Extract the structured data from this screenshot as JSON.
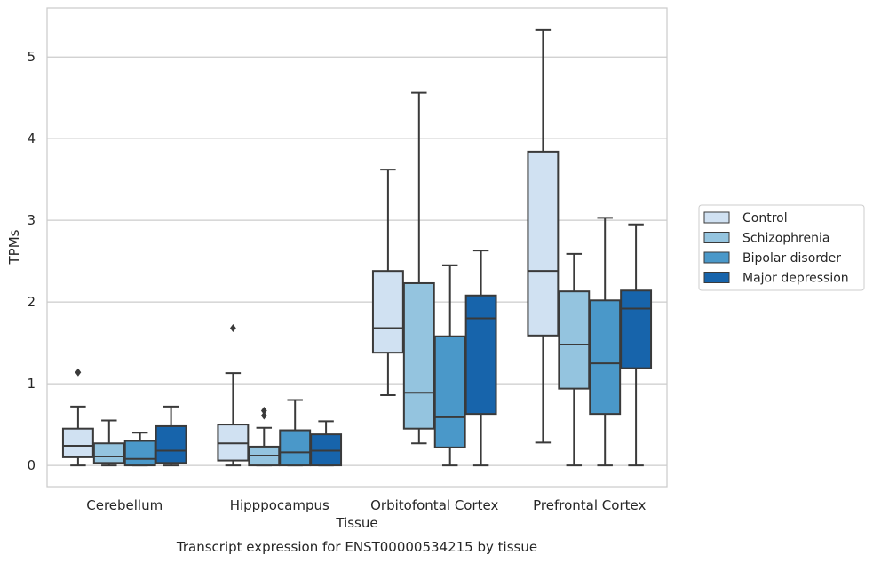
{
  "chart_data": {
    "type": "box",
    "title": "",
    "caption": "Transcript expression for ENST00000534215 by tissue",
    "xlabel": "Tissue",
    "ylabel": "TPMs",
    "ylim": [
      -0.26,
      5.6
    ],
    "yticks": [
      0,
      1,
      2,
      3,
      4,
      5
    ],
    "grid": "horizontal",
    "legend_position": "right",
    "categories": [
      "Cerebellum",
      "Hipppocampus",
      "Orbitofontal Cortex",
      "Prefrontal Cortex"
    ],
    "series": [
      {
        "name": "Control",
        "color": "#d0e1f2",
        "boxes": [
          {
            "whisker_low": 0.0,
            "q1": 0.1,
            "median": 0.24,
            "q3": 0.45,
            "whisker_high": 0.72,
            "outliers": [
              1.14
            ]
          },
          {
            "whisker_low": 0.0,
            "q1": 0.06,
            "median": 0.27,
            "q3": 0.5,
            "whisker_high": 1.13,
            "outliers": [
              1.68
            ]
          },
          {
            "whisker_low": 0.86,
            "q1": 1.38,
            "median": 1.68,
            "q3": 2.38,
            "whisker_high": 3.62,
            "outliers": []
          },
          {
            "whisker_low": 0.28,
            "q1": 1.59,
            "median": 2.38,
            "q3": 3.84,
            "whisker_high": 5.33,
            "outliers": []
          }
        ]
      },
      {
        "name": "Schizophrenia",
        "color": "#94c4df",
        "boxes": [
          {
            "whisker_low": 0.0,
            "q1": 0.03,
            "median": 0.11,
            "q3": 0.27,
            "whisker_high": 0.55,
            "outliers": []
          },
          {
            "whisker_low": 0.0,
            "q1": 0.0,
            "median": 0.12,
            "q3": 0.23,
            "whisker_high": 0.46,
            "outliers": [
              0.61,
              0.67
            ]
          },
          {
            "whisker_low": 0.27,
            "q1": 0.45,
            "median": 0.89,
            "q3": 2.23,
            "whisker_high": 4.56,
            "outliers": []
          },
          {
            "whisker_low": 0.0,
            "q1": 0.94,
            "median": 1.48,
            "q3": 2.13,
            "whisker_high": 2.59,
            "outliers": []
          }
        ]
      },
      {
        "name": "Bipolar disorder",
        "color": "#4a98c9",
        "boxes": [
          {
            "whisker_low": 0.0,
            "q1": 0.0,
            "median": 0.08,
            "q3": 0.3,
            "whisker_high": 0.4,
            "outliers": []
          },
          {
            "whisker_low": 0.0,
            "q1": 0.0,
            "median": 0.16,
            "q3": 0.43,
            "whisker_high": 0.8,
            "outliers": []
          },
          {
            "whisker_low": 0.0,
            "q1": 0.22,
            "median": 0.59,
            "q3": 1.58,
            "whisker_high": 2.45,
            "outliers": []
          },
          {
            "whisker_low": 0.0,
            "q1": 0.63,
            "median": 1.25,
            "q3": 2.02,
            "whisker_high": 3.03,
            "outliers": []
          }
        ]
      },
      {
        "name": "Major depression",
        "color": "#1764ab",
        "boxes": [
          {
            "whisker_low": 0.0,
            "q1": 0.03,
            "median": 0.18,
            "q3": 0.48,
            "whisker_high": 0.72,
            "outliers": []
          },
          {
            "whisker_low": 0.0,
            "q1": 0.0,
            "median": 0.18,
            "q3": 0.38,
            "whisker_high": 0.54,
            "outliers": []
          },
          {
            "whisker_low": 0.0,
            "q1": 0.63,
            "median": 1.8,
            "q3": 2.08,
            "whisker_high": 2.63,
            "outliers": []
          },
          {
            "whisker_low": 0.0,
            "q1": 1.19,
            "median": 1.92,
            "q3": 2.14,
            "whisker_high": 2.95,
            "outliers": []
          }
        ]
      }
    ]
  }
}
